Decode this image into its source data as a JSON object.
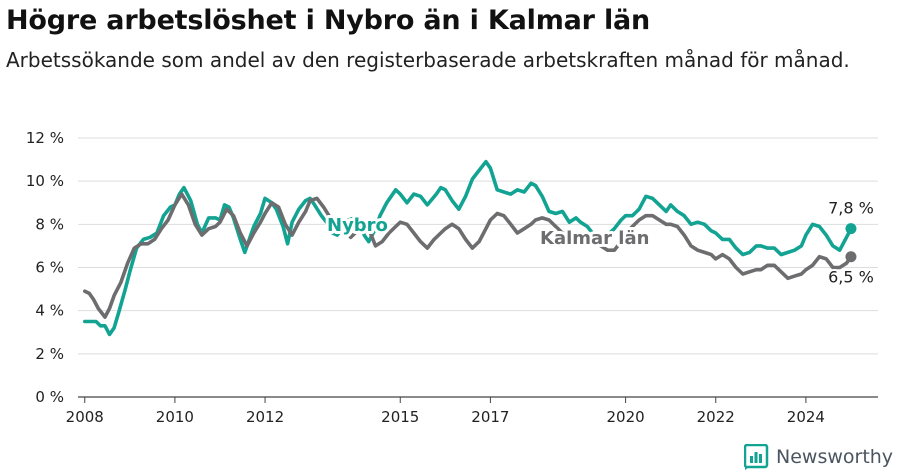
{
  "title": "Högre arbetslöshet i Nybro än i Kalmar län",
  "subtitle": "Arbetssökande som andel av den registerbaserade arbetskraften månad för månad.",
  "brand": {
    "name": "Newsworthy"
  },
  "colors": {
    "nybro": "#12a393",
    "kalmar": "#6d6d70",
    "grid": "#dddddd",
    "text": "#222222",
    "brand": "#4a5560"
  },
  "chart_data": {
    "type": "line",
    "title": "Högre arbetslöshet i Nybro än i Kalmar län",
    "subtitle": "Arbetssökande som andel av den registerbaserade arbetskraften månad för månad.",
    "xlabel": "",
    "ylabel": "",
    "xlim": [
      2007.85,
      2025.6
    ],
    "ylim": [
      0,
      12
    ],
    "x_ticks": [
      2008,
      2010,
      2012,
      2015,
      2017,
      2020,
      2022,
      2024
    ],
    "x_tick_labels": [
      "2008",
      "2010",
      "2012",
      "2015",
      "2017",
      "2020",
      "2022",
      "2024"
    ],
    "y_ticks": [
      0,
      2,
      4,
      6,
      8,
      10,
      12
    ],
    "y_tick_labels": [
      "0 %",
      "2 %",
      "4 %",
      "6 %",
      "8 %",
      "10 %",
      "12 %"
    ],
    "grid": true,
    "series": [
      {
        "name": "Nybro",
        "color": "#12a393",
        "end_label": "7,8 %",
        "x": [
          2008.0,
          2008.25,
          2008.35,
          2008.45,
          2008.55,
          2008.65,
          2008.75,
          2008.9,
          2009.0,
          2009.15,
          2009.3,
          2009.45,
          2009.6,
          2009.75,
          2009.9,
          2010.0,
          2010.1,
          2010.2,
          2010.35,
          2010.5,
          2010.6,
          2010.75,
          2010.9,
          2011.0,
          2011.1,
          2011.2,
          2011.3,
          2011.45,
          2011.55,
          2011.75,
          2011.9,
          2012.0,
          2012.15,
          2012.25,
          2012.4,
          2012.5,
          2012.6,
          2012.75,
          2012.9,
          2013.0,
          2013.1,
          2013.25,
          2013.4,
          2013.5,
          2013.6,
          2013.75,
          2013.85,
          2014.0,
          2014.1,
          2014.2,
          2014.3,
          2014.45,
          2014.55,
          2014.7,
          2014.8,
          2014.9,
          2015.0,
          2015.15,
          2015.3,
          2015.45,
          2015.6,
          2015.8,
          2015.9,
          2016.0,
          2016.15,
          2016.3,
          2016.45,
          2016.6,
          2016.75,
          2016.9,
          2017.0,
          2017.15,
          2017.3,
          2017.45,
          2017.6,
          2017.75,
          2017.9,
          2018.0,
          2018.15,
          2018.3,
          2018.45,
          2018.6,
          2018.75,
          2018.9,
          2019.0,
          2019.15,
          2019.3,
          2019.45,
          2019.6,
          2019.75,
          2019.9,
          2020.0,
          2020.15,
          2020.3,
          2020.45,
          2020.6,
          2020.75,
          2020.9,
          2021.0,
          2021.15,
          2021.3,
          2021.45,
          2021.6,
          2021.75,
          2021.9,
          2022.0,
          2022.15,
          2022.3,
          2022.45,
          2022.6,
          2022.75,
          2022.9,
          2023.0,
          2023.15,
          2023.3,
          2023.45,
          2023.6,
          2023.75,
          2023.9,
          2024.0,
          2024.15,
          2024.3,
          2024.45,
          2024.6,
          2024.75,
          2024.9,
          2025.0
        ],
        "y": [
          3.5,
          3.5,
          3.3,
          3.3,
          2.9,
          3.2,
          3.9,
          5.0,
          5.8,
          6.9,
          7.3,
          7.4,
          7.6,
          8.4,
          8.8,
          8.9,
          9.4,
          9.7,
          9.1,
          8.0,
          7.6,
          8.3,
          8.3,
          8.2,
          8.9,
          8.8,
          8.3,
          7.3,
          6.7,
          7.9,
          8.5,
          9.2,
          9.0,
          8.7,
          7.9,
          7.1,
          8.1,
          8.7,
          9.1,
          9.2,
          8.9,
          8.4,
          8.0,
          7.6,
          7.5,
          7.9,
          8.2,
          8.3,
          8.2,
          7.5,
          7.2,
          7.8,
          8.4,
          9.0,
          9.3,
          9.6,
          9.4,
          9.0,
          9.4,
          9.3,
          8.9,
          9.4,
          9.7,
          9.6,
          9.1,
          8.7,
          9.3,
          10.1,
          10.5,
          10.9,
          10.6,
          9.6,
          9.5,
          9.4,
          9.6,
          9.5,
          9.9,
          9.8,
          9.3,
          8.6,
          8.5,
          8.6,
          8.1,
          8.3,
          8.1,
          7.9,
          7.5,
          7.3,
          7.5,
          7.8,
          8.2,
          8.4,
          8.4,
          8.7,
          9.3,
          9.2,
          8.9,
          8.6,
          8.9,
          8.6,
          8.4,
          8.0,
          8.1,
          8.0,
          7.7,
          7.6,
          7.3,
          7.3,
          6.9,
          6.6,
          6.7,
          7.0,
          7.0,
          6.9,
          6.9,
          6.6,
          6.7,
          6.8,
          7.0,
          7.5,
          8.0,
          7.9,
          7.5,
          7.0,
          6.8,
          7.4,
          7.8
        ]
      },
      {
        "name": "Kalmar län",
        "color": "#6d6d70",
        "end_label": "6,5 %",
        "x": [
          2008.0,
          2008.1,
          2008.2,
          2008.3,
          2008.45,
          2008.55,
          2008.65,
          2008.8,
          2008.95,
          2009.1,
          2009.25,
          2009.4,
          2009.55,
          2009.7,
          2009.85,
          2010.0,
          2010.15,
          2010.3,
          2010.45,
          2010.6,
          2010.75,
          2010.9,
          2011.0,
          2011.15,
          2011.3,
          2011.45,
          2011.6,
          2011.75,
          2011.9,
          2012.0,
          2012.15,
          2012.3,
          2012.45,
          2012.6,
          2012.75,
          2012.9,
          2013.0,
          2013.15,
          2013.3,
          2013.45,
          2013.6,
          2013.75,
          2013.9,
          2014.0,
          2014.15,
          2014.3,
          2014.45,
          2014.6,
          2014.75,
          2014.9,
          2015.0,
          2015.15,
          2015.3,
          2015.45,
          2015.6,
          2015.75,
          2015.9,
          2016.0,
          2016.15,
          2016.3,
          2016.45,
          2016.6,
          2016.75,
          2016.9,
          2017.0,
          2017.15,
          2017.3,
          2017.45,
          2017.6,
          2017.75,
          2017.9,
          2018.0,
          2018.15,
          2018.3,
          2018.45,
          2018.6,
          2018.75,
          2018.9,
          2019.0,
          2019.15,
          2019.3,
          2019.45,
          2019.6,
          2019.75,
          2019.9,
          2020.0,
          2020.15,
          2020.3,
          2020.45,
          2020.6,
          2020.75,
          2020.9,
          2021.0,
          2021.15,
          2021.3,
          2021.45,
          2021.6,
          2021.75,
          2021.9,
          2022.0,
          2022.15,
          2022.3,
          2022.45,
          2022.6,
          2022.75,
          2022.9,
          2023.0,
          2023.15,
          2023.3,
          2023.45,
          2023.6,
          2023.75,
          2023.9,
          2024.0,
          2024.15,
          2024.3,
          2024.45,
          2024.6,
          2024.75,
          2024.9,
          2025.0
        ],
        "y": [
          4.9,
          4.8,
          4.5,
          4.1,
          3.7,
          4.1,
          4.7,
          5.3,
          6.2,
          6.9,
          7.1,
          7.1,
          7.3,
          7.8,
          8.2,
          8.9,
          9.4,
          8.9,
          8.0,
          7.5,
          7.8,
          7.9,
          8.1,
          8.7,
          8.4,
          7.6,
          7.0,
          7.6,
          8.1,
          8.5,
          9.0,
          8.8,
          8.0,
          7.5,
          8.1,
          8.6,
          9.1,
          9.2,
          8.8,
          8.3,
          8.0,
          7.8,
          7.4,
          7.6,
          8.1,
          7.8,
          7.0,
          7.2,
          7.6,
          7.9,
          8.1,
          8.0,
          7.6,
          7.2,
          6.9,
          7.3,
          7.6,
          7.8,
          8.0,
          7.8,
          7.3,
          6.9,
          7.2,
          7.8,
          8.2,
          8.5,
          8.4,
          8.0,
          7.6,
          7.8,
          8.0,
          8.2,
          8.3,
          8.2,
          7.9,
          7.6,
          7.5,
          7.4,
          7.4,
          7.5,
          7.2,
          7.0,
          6.8,
          6.8,
          7.2,
          7.6,
          7.9,
          8.2,
          8.4,
          8.4,
          8.2,
          8.0,
          8.0,
          7.9,
          7.5,
          7.0,
          6.8,
          6.7,
          6.6,
          6.4,
          6.6,
          6.4,
          6.0,
          5.7,
          5.8,
          5.9,
          5.9,
          6.1,
          6.1,
          5.8,
          5.5,
          5.6,
          5.7,
          5.9,
          6.1,
          6.5,
          6.4,
          6.0,
          6.0,
          6.2,
          6.5
        ]
      }
    ]
  }
}
